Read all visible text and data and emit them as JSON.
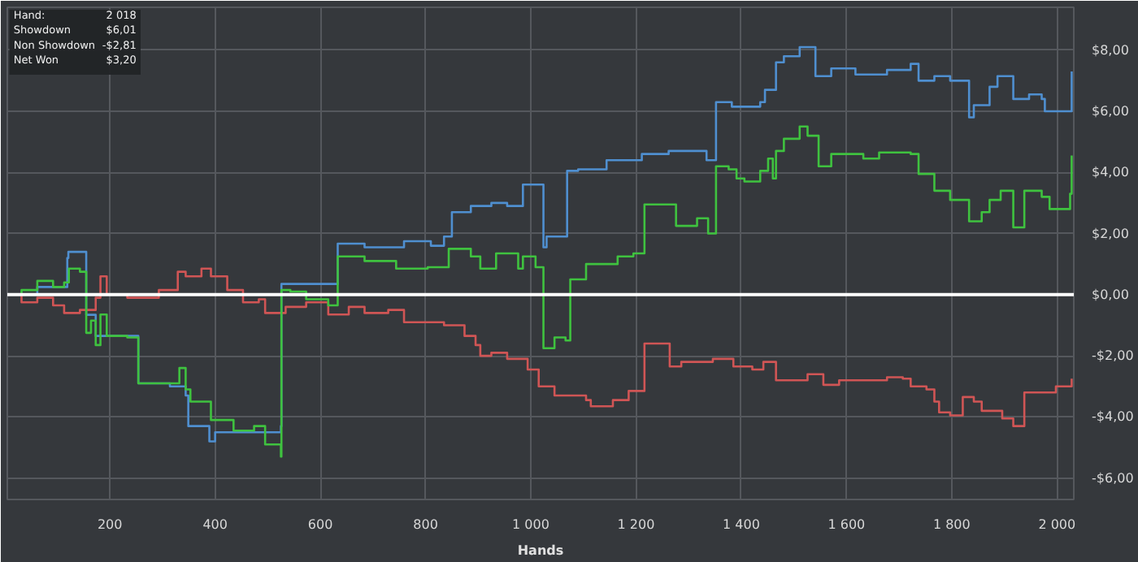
{
  "chart_data": {
    "type": "step",
    "xlabel": "Hands",
    "xlim": [
      5,
      2032
    ],
    "ylim": [
      -6.7,
      9.4
    ],
    "xticks": [
      200,
      400,
      600,
      800,
      {
        "value": 1000,
        "label": "1 000"
      },
      {
        "value": 1200,
        "label": "1 200"
      },
      {
        "value": 1400,
        "label": "1 400"
      },
      {
        "value": 1600,
        "label": "1 600"
      },
      {
        "value": 1800,
        "label": "1 800"
      },
      {
        "value": 2000,
        "label": "2 000"
      }
    ],
    "yticks": [
      {
        "value": -6,
        "label": "-$6,00"
      },
      {
        "value": -4,
        "label": "-$4,00"
      },
      {
        "value": -2,
        "label": "-$2,00"
      },
      {
        "value": 0,
        "label": "$0,00"
      },
      {
        "value": 2,
        "label": "$2,00"
      },
      {
        "value": 4,
        "label": "$4,00"
      },
      {
        "value": 6,
        "label": "$6,00"
      },
      {
        "value": 8,
        "label": "$8,00"
      }
    ],
    "grid": true,
    "ref_lines": [
      {
        "axis": "y",
        "value": 0,
        "color": "#ffffff"
      }
    ],
    "annotations": [
      "Hand:",
      "2 018",
      "Showdown",
      "$6,01",
      "Non Showdown",
      "-$2,81",
      "Net Won",
      "$3,20"
    ],
    "series": [
      {
        "color": "#4f8fd0",
        "x": [
          7,
          32,
          62,
          119,
          121,
          155,
          173,
          254,
          314,
          344,
          349,
          389,
          400,
          525,
          526,
          633,
          684,
          759,
          810,
          835,
          850,
          886,
          925,
          955,
          985,
          1024,
          1030,
          1069,
          1090,
          1144,
          1211,
          1262,
          1334,
          1352,
          1382,
          1400,
          1436,
          1445,
          1466,
          1481,
          1511,
          1541,
          1571,
          1617,
          1677,
          1722,
          1737,
          1767,
          1797,
          1833,
          1842,
          1872,
          1887,
          1917,
          1947,
          1971,
          1977,
          2025,
          2028
        ],
        "values": [
          0,
          0,
          0.25,
          1.2,
          1.4,
          -0.66,
          -1.35,
          -2.9,
          -3.0,
          -3.3,
          -4.3,
          -4.8,
          -4.5,
          -4.3,
          0.35,
          1.67,
          1.55,
          1.75,
          1.6,
          1.9,
          2.7,
          2.9,
          3.0,
          2.9,
          3.6,
          1.55,
          1.9,
          4.05,
          4.1,
          4.4,
          4.6,
          4.7,
          4.4,
          6.3,
          6.15,
          6.15,
          6.3,
          6.7,
          7.6,
          7.8,
          8.1,
          7.15,
          7.4,
          7.2,
          7.35,
          7.55,
          7.0,
          7.15,
          7.0,
          5.8,
          6.2,
          6.8,
          7.15,
          6.4,
          6.55,
          6.4,
          6.0,
          6.0,
          7.3
        ]
      },
      {
        "color": "#d05555",
        "x": [
          7,
          32,
          62,
          92,
          113,
          143,
          173,
          182,
          194,
          233,
          293,
          329,
          344,
          374,
          392,
          423,
          453,
          483,
          495,
          534,
          573,
          615,
          654,
          684,
          729,
          759,
          835,
          874,
          895,
          904,
          925,
          955,
          994,
          1015,
          1045,
          1105,
          1114,
          1156,
          1186,
          1204,
          1216,
          1246,
          1264,
          1286,
          1346,
          1385,
          1421,
          1442,
          1466,
          1526,
          1556,
          1586,
          1662,
          1677,
          1707,
          1722,
          1752,
          1767,
          1776,
          1797,
          1821,
          1842,
          1857,
          1896,
          1917,
          1938,
          1977,
          1998,
          2028
        ],
        "values": [
          0,
          -0.25,
          -0.1,
          -0.35,
          -0.6,
          -0.5,
          -0.1,
          0.6,
          0,
          -0.1,
          0.15,
          0.75,
          0.6,
          0.85,
          0.6,
          0.15,
          -0.25,
          -0.15,
          -0.6,
          -0.4,
          -0.25,
          -0.65,
          -0.4,
          -0.6,
          -0.5,
          -0.9,
          -1.0,
          -1.35,
          -1.65,
          -2.0,
          -1.9,
          -2.1,
          -2.45,
          -3.0,
          -3.3,
          -3.45,
          -3.65,
          -3.45,
          -3.15,
          -3.15,
          -1.6,
          -1.6,
          -2.35,
          -2.2,
          -2.1,
          -2.35,
          -2.45,
          -2.2,
          -2.8,
          -2.6,
          -2.95,
          -2.8,
          -2.8,
          -2.7,
          -2.75,
          -3.0,
          -3.1,
          -3.5,
          -3.85,
          -3.95,
          -3.35,
          -3.5,
          -3.8,
          -4.05,
          -4.3,
          -3.2,
          -3.2,
          -3.0,
          -2.75
        ]
      },
      {
        "color": "#3fc23f",
        "x": [
          7,
          32,
          62,
          92,
          113,
          122,
          143,
          155,
          164,
          173,
          182,
          194,
          233,
          254,
          293,
          332,
          344,
          353,
          392,
          435,
          474,
          495,
          525,
          526,
          543,
          573,
          615,
          633,
          684,
          744,
          804,
          844,
          886,
          904,
          934,
          976,
          985,
          1009,
          1024,
          1045,
          1066,
          1075,
          1105,
          1165,
          1195,
          1216,
          1255,
          1276,
          1316,
          1337,
          1352,
          1376,
          1391,
          1406,
          1436,
          1451,
          1460,
          1466,
          1481,
          1511,
          1526,
          1547,
          1571,
          1632,
          1662,
          1722,
          1737,
          1767,
          1797,
          1821,
          1833,
          1857,
          1872,
          1893,
          1917,
          1938,
          1971,
          1986,
          2025,
          2028
        ],
        "values": [
          0,
          0.15,
          0.45,
          0.25,
          0.4,
          0.85,
          0.75,
          -1.25,
          -0.85,
          -1.65,
          -0.65,
          -1.35,
          -1.4,
          -2.9,
          -2.9,
          -2.4,
          -3.1,
          -3.5,
          -4.1,
          -4.45,
          -4.3,
          -4.9,
          -5.3,
          0.15,
          0.1,
          -0.15,
          -0.35,
          1.25,
          1.1,
          0.85,
          0.9,
          1.5,
          1.25,
          0.85,
          1.35,
          0.85,
          1.25,
          0.9,
          -1.75,
          -1.4,
          -1.5,
          0.5,
          1.0,
          1.25,
          1.35,
          2.95,
          2.95,
          2.25,
          2.5,
          2.0,
          4.2,
          4.1,
          3.8,
          3.7,
          4.05,
          4.45,
          3.8,
          4.7,
          5.1,
          5.5,
          5.2,
          4.2,
          4.6,
          4.45,
          4.65,
          4.6,
          3.95,
          3.4,
          3.1,
          3.1,
          2.4,
          2.7,
          3.1,
          3.4,
          2.2,
          3.4,
          3.2,
          2.8,
          3.3,
          4.55
        ]
      }
    ]
  }
}
